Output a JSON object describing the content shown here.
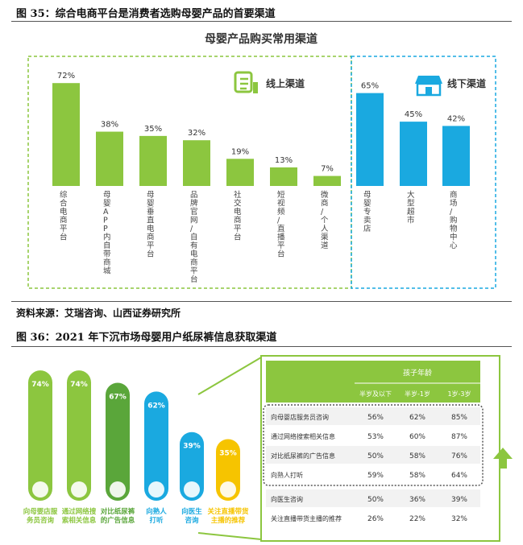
{
  "fig35": {
    "caption": "图 35：综合电商平台是消费者选购母婴产品的首要渠道",
    "title": "母婴产品购买常用渠道",
    "online_label": "线上渠道",
    "offline_label": "线下渠道",
    "source": "资料来源：艾瑞咨询、山西证券研究所"
  },
  "fig36": {
    "caption": "图 36：2021 年下沉市场母婴用户纸尿裤信息获取渠道",
    "table": {
      "group_header": "孩子年龄",
      "columns": [
        "半岁及以下",
        "半岁-1岁",
        "1岁-3岁"
      ],
      "rows": [
        {
          "label": "向母婴店服务员咨询",
          "values": [
            "56%",
            "62%",
            "85%"
          ]
        },
        {
          "label": "通过网络搜索相关信息",
          "values": [
            "53%",
            "60%",
            "87%"
          ]
        },
        {
          "label": "对比纸尿裤的广告信息",
          "values": [
            "50%",
            "58%",
            "76%"
          ]
        },
        {
          "label": "向熟人打听",
          "values": [
            "59%",
            "58%",
            "64%"
          ]
        },
        {
          "label": "向医生咨询",
          "values": [
            "50%",
            "36%",
            "39%"
          ]
        },
        {
          "label": "关注直播带货主播的推荐",
          "values": [
            "26%",
            "22%",
            "32%"
          ]
        }
      ]
    }
  },
  "colors": {
    "online": "#8cc63f",
    "offline": "#1aa9e0",
    "fig36": [
      "#8cc63f",
      "#8cc63f",
      "#5aa63a",
      "#1aa9e0",
      "#1aa9e0",
      "#f6c400"
    ]
  },
  "chart_data": [
    {
      "type": "bar",
      "title": "母婴产品购买常用渠道",
      "categories": [
        "综合电商平台",
        "母婴APP内自带商城",
        "母婴垂直电商平台",
        "品牌官网/自有电商平台",
        "社交电商平台",
        "短视频/直播平台",
        "微商/个人渠道",
        "母婴专卖店",
        "大型超市",
        "商场/购物中心"
      ],
      "values": [
        72,
        38,
        35,
        32,
        19,
        13,
        7,
        65,
        45,
        42
      ],
      "groups": [
        "线上渠道",
        "线上渠道",
        "线上渠道",
        "线上渠道",
        "线上渠道",
        "线上渠道",
        "线上渠道",
        "线下渠道",
        "线下渠道",
        "线下渠道"
      ],
      "value_labels": [
        "72%",
        "38%",
        "35%",
        "32%",
        "19%",
        "13%",
        "7%",
        "65%",
        "45%",
        "42%"
      ],
      "ylim": [
        0,
        80
      ]
    },
    {
      "type": "bar",
      "categories": [
        "向母婴店服务员咨询",
        "通过网络搜索相关信息",
        "对比纸尿裤的广告信息",
        "向熟人打听",
        "向医生咨询",
        "关注直播带货主播的推荐"
      ],
      "values": [
        74,
        74,
        67,
        62,
        39,
        35
      ],
      "value_labels": [
        "74%",
        "74%",
        "67%",
        "62%",
        "39%",
        "35%"
      ],
      "ylim": [
        0,
        80
      ]
    }
  ]
}
